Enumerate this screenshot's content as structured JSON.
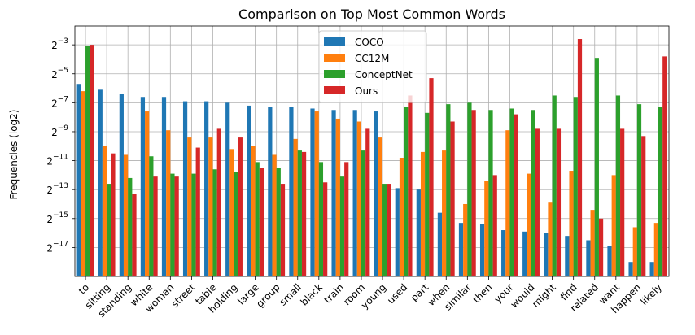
{
  "chart_data": {
    "type": "bar",
    "title": "Comparison on Top Most Common Words",
    "xlabel": "",
    "ylabel": "Frequencies (log2)",
    "yscale": "log2",
    "ylim_log2": [
      -19.0,
      -1.7
    ],
    "yticks_log2": [
      -17,
      -15,
      -13,
      -11,
      -9,
      -7,
      -5,
      -3
    ],
    "ytick_labels": [
      {
        "base": "2",
        "exp": "−17"
      },
      {
        "base": "2",
        "exp": "−15"
      },
      {
        "base": "2",
        "exp": "−13"
      },
      {
        "base": "2",
        "exp": "−11"
      },
      {
        "base": "2",
        "exp": "−9"
      },
      {
        "base": "2",
        "exp": "−7"
      },
      {
        "base": "2",
        "exp": "−5"
      },
      {
        "base": "2",
        "exp": "−3"
      }
    ],
    "grid": true,
    "legend_position": "top-center",
    "categories": [
      "to",
      "sitting",
      "standing",
      "white",
      "woman",
      "street",
      "table",
      "holding",
      "large",
      "group",
      "small",
      "black",
      "train",
      "room",
      "young",
      "used",
      "part",
      "when",
      "similar",
      "then",
      "your",
      "would",
      "might",
      "find",
      "related",
      "want",
      "happen",
      "likely"
    ],
    "series": [
      {
        "name": "COCO",
        "color": "#1f77b4",
        "values_log2": [
          -5.7,
          -6.1,
          -6.4,
          -6.6,
          -6.6,
          -6.9,
          -6.9,
          -7.0,
          -7.2,
          -7.3,
          -7.3,
          -7.4,
          -7.5,
          -7.5,
          -7.6,
          -12.9,
          -13.0,
          -14.6,
          -15.3,
          -15.4,
          -15.8,
          -15.9,
          -16.0,
          -16.2,
          -16.5,
          -16.9,
          -18.0,
          -18.0
        ]
      },
      {
        "name": "CC12M",
        "color": "#ff7f0e",
        "values_log2": [
          -6.2,
          -10.0,
          -10.6,
          -7.6,
          -8.9,
          -9.4,
          -9.4,
          -10.2,
          -10.0,
          -10.6,
          -9.5,
          -7.6,
          -8.1,
          -8.3,
          -9.4,
          -10.8,
          -10.4,
          -10.3,
          -14.0,
          -12.4,
          -8.9,
          -11.9,
          -13.9,
          -11.7,
          -14.4,
          -12.0,
          -15.6,
          -15.3
        ]
      },
      {
        "name": "ConceptNet",
        "color": "#2ca02c",
        "values_log2": [
          -3.1,
          -12.6,
          -12.2,
          -10.7,
          -11.9,
          -11.9,
          -11.6,
          -11.8,
          -11.1,
          -11.5,
          -10.3,
          -11.1,
          -12.1,
          -10.3,
          -12.6,
          -7.3,
          -7.7,
          -7.1,
          -7.0,
          -7.5,
          -7.4,
          -7.5,
          -6.5,
          -6.6,
          -3.9,
          -6.5,
          -7.1,
          -7.3
        ]
      },
      {
        "name": "Ours",
        "color": "#d62728",
        "values_log2": [
          -3.0,
          -10.5,
          -13.3,
          -12.1,
          -12.1,
          -10.1,
          -8.8,
          -9.4,
          -11.5,
          -12.6,
          -10.4,
          -12.5,
          -11.1,
          -8.8,
          -12.6,
          -6.5,
          -5.3,
          -8.3,
          -7.5,
          -12.0,
          -7.8,
          -8.8,
          -8.8,
          -2.6,
          -15.0,
          -8.8,
          -9.3,
          -3.8
        ]
      }
    ]
  }
}
